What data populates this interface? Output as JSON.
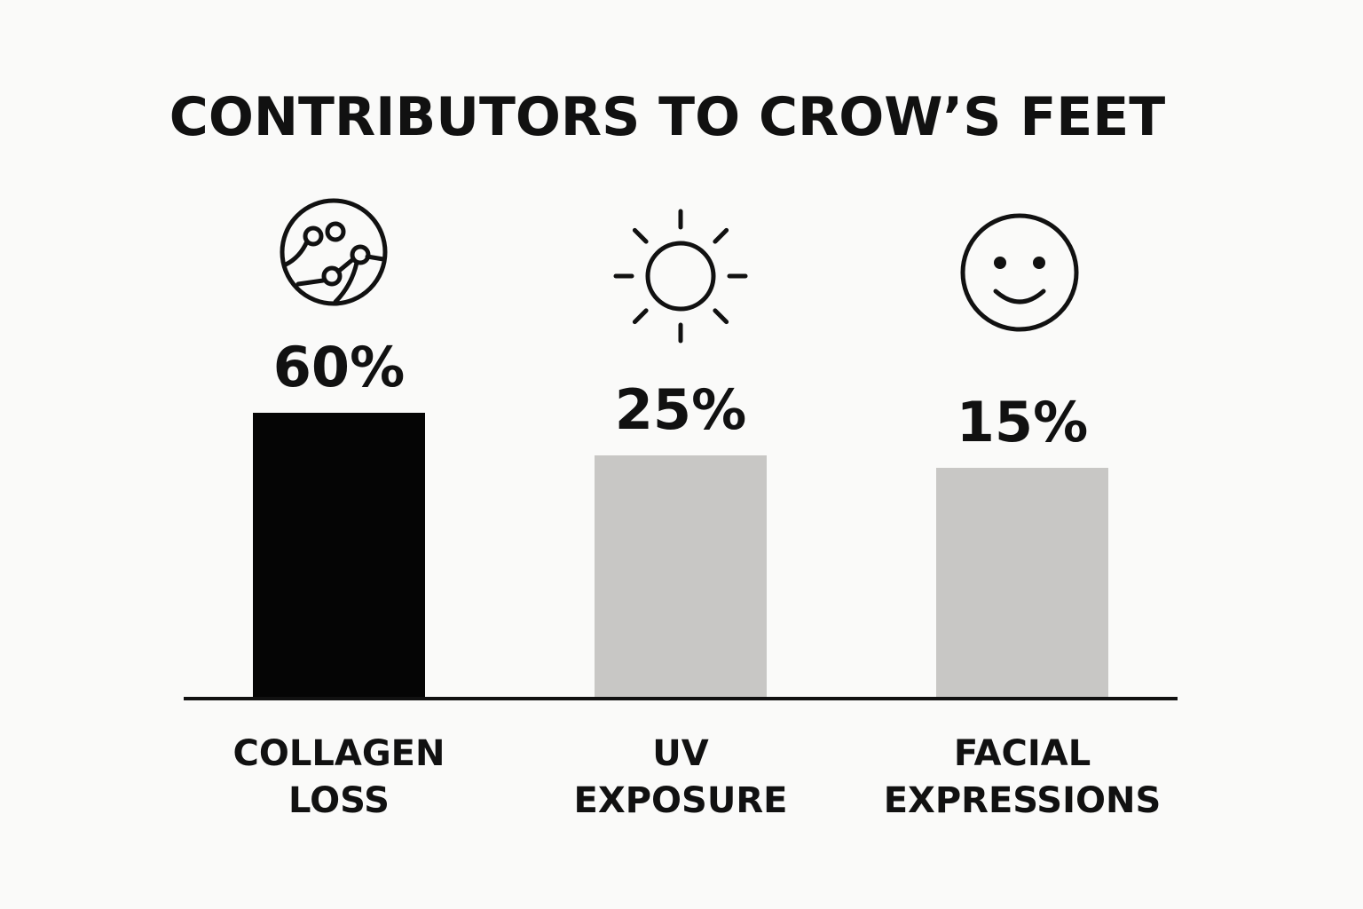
{
  "chart_data": {
    "type": "bar",
    "title": "CONTRIBUTORS TO CROW’S FEET",
    "categories": [
      [
        "COLLAGEN",
        "LOSS"
      ],
      [
        "UV",
        "EXPOSURE"
      ],
      [
        "FACIAL",
        "EXPRESSIONS"
      ]
    ],
    "values": [
      60,
      25,
      15
    ],
    "value_labels": [
      "60%",
      "25%",
      "15%"
    ],
    "icons": [
      "collagen-fiber-icon",
      "sun-icon",
      "smiley-face-icon"
    ],
    "ylim": [
      0,
      100
    ],
    "grid": false,
    "legend": "none",
    "colors": [
      "#050505",
      "#c8c7c5",
      "#c8c7c5"
    ],
    "xlabel": "",
    "ylabel": ""
  }
}
